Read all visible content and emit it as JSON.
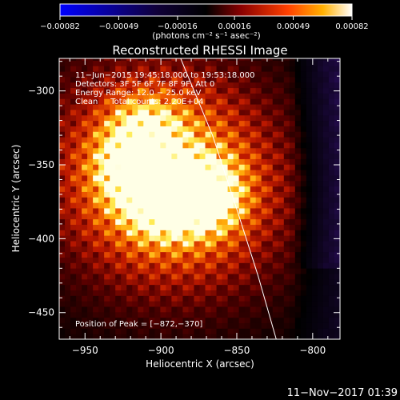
{
  "colors": {
    "background": "#000000",
    "foreground": "#ffffff",
    "colormap": [
      "#0000ff",
      "#000000",
      "#7a0000",
      "#ff3000",
      "#ffb000",
      "#ffff80",
      "#ffffff"
    ]
  },
  "chart_data": {
    "type": "heatmap",
    "title": "Reconstructed RHESSI Image",
    "xlabel": "Heliocentric X (arcsec)",
    "ylabel": "Heliocentric Y (arcsec)",
    "xlim": [
      -967,
      -782
    ],
    "ylim": [
      -468,
      -278
    ],
    "xticks": [
      -950,
      -900,
      -850,
      -800
    ],
    "xtick_labels": [
      "−950",
      "−900",
      "−850",
      "−800"
    ],
    "yticks": [
      -450,
      -400,
      -350,
      -300
    ],
    "ytick_labels": [
      "−450",
      "−400",
      "−350",
      "−300"
    ],
    "colorbar": {
      "range": [
        -0.00082,
        0.00082
      ],
      "tick_values": [
        -0.00082,
        -0.00049,
        -0.00016,
        0.00016,
        0.00049,
        0.00082
      ],
      "tick_labels": [
        "−0.00082",
        "−0.00049",
        "−0.00016",
        "0.00016",
        "0.00049",
        "0.00082"
      ],
      "unit_label": "(photons cm⁻² s⁻¹ asec⁻²)"
    },
    "annotations": {
      "line1": "11−Jun−2015 19:45:18.000 to 19:53:18.000",
      "line2": "Detectors: 3F 5F 6F 7F 8F 9F, Att 0",
      "line3": "Energy Range: 12.0 − 25.0 keV",
      "line4": "Clean     Total counts: 2.20E+04",
      "peak": "Position of Peak = [−872,−370]"
    },
    "sources": [
      {
        "x": -872,
        "y": -370,
        "intensity": 1.0
      },
      {
        "x": -918,
        "y": -352,
        "intensity": 0.78
      },
      {
        "x": -900,
        "y": -375,
        "intensity": 0.72
      },
      {
        "x": -910,
        "y": -325,
        "intensity": 0.5
      }
    ],
    "limb_curve": [
      {
        "x": -887,
        "y": -278
      },
      {
        "x": -866,
        "y": -330
      },
      {
        "x": -850,
        "y": -380
      },
      {
        "x": -836,
        "y": -425
      },
      {
        "x": -824,
        "y": -468
      }
    ],
    "timestamp": "11−Nov−2017 01:39"
  }
}
